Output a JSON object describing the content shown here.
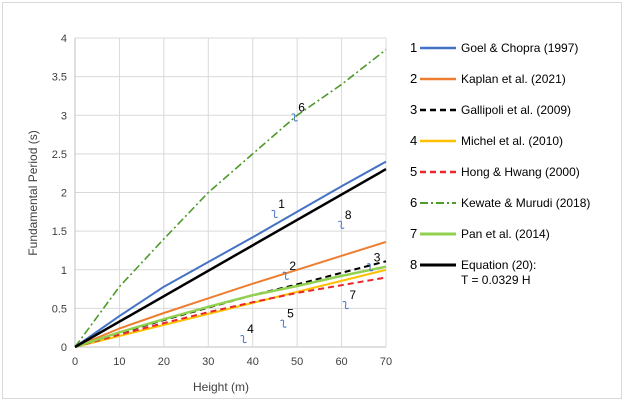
{
  "chart_data": {
    "type": "line",
    "title": "",
    "xlabel": "Height (m)",
    "ylabel": "Fundamental Period (s)",
    "xlim": [
      0,
      70
    ],
    "ylim": [
      0,
      4
    ],
    "xticks": [
      "0",
      "10",
      "20",
      "30",
      "40",
      "50",
      "60",
      "70"
    ],
    "yticks": [
      "0",
      "0.5",
      "1",
      "1.5",
      "2",
      "2.5",
      "3",
      "3.5",
      "4"
    ],
    "grid": true,
    "legend_position": "right",
    "series": [
      {
        "id": "1",
        "name": "Goel & Chopra (1997)",
        "color": "#4472c4",
        "dash": "solid",
        "width": 2,
        "x": [
          0,
          10,
          20,
          30,
          40,
          50,
          60,
          70
        ],
        "y": [
          0,
          0.4,
          0.78,
          1.1,
          1.42,
          1.75,
          2.08,
          2.4
        ]
      },
      {
        "id": "2",
        "name": "Kaplan et al. (2021)",
        "color": "#ed7d31",
        "dash": "solid",
        "width": 2,
        "x": [
          0,
          10,
          20,
          30,
          40,
          50,
          60,
          70
        ],
        "y": [
          0,
          0.24,
          0.44,
          0.63,
          0.82,
          1.0,
          1.18,
          1.36
        ]
      },
      {
        "id": "3",
        "name": "Gallipoli et al. (2009)",
        "color": "#000000",
        "dash": "dashed",
        "width": 2,
        "x": [
          0,
          10,
          20,
          30,
          40,
          50,
          60,
          70
        ],
        "y": [
          0,
          0.18,
          0.35,
          0.51,
          0.67,
          0.81,
          0.96,
          1.11
        ]
      },
      {
        "id": "4",
        "name": "Michel et al. (2010)",
        "color": "#ffc000",
        "dash": "solid",
        "width": 2,
        "x": [
          0,
          70
        ],
        "y": [
          0,
          1.0
        ]
      },
      {
        "id": "5",
        "name": "Hong & Hwang (2000)",
        "color": "#e8262b",
        "dash": "dashed",
        "width": 2,
        "x": [
          0,
          10,
          20,
          30,
          40,
          50,
          60,
          70
        ],
        "y": [
          0,
          0.16,
          0.31,
          0.45,
          0.58,
          0.7,
          0.8,
          0.9
        ]
      },
      {
        "id": "6",
        "name": "Kewate & Murudi (2018)",
        "color": "#4e9a2b",
        "dash": "dashdot",
        "width": 1.6,
        "x": [
          0,
          10,
          20,
          30,
          40,
          50,
          60,
          70
        ],
        "y": [
          0,
          0.78,
          1.4,
          2.0,
          2.5,
          3.0,
          3.4,
          3.85
        ]
      },
      {
        "id": "7",
        "name": "Pan et al. (2014)",
        "color": "#92d050",
        "dash": "solid",
        "width": 2.5,
        "x": [
          0,
          10,
          20,
          30,
          40,
          50,
          60,
          70
        ],
        "y": [
          0,
          0.19,
          0.36,
          0.52,
          0.67,
          0.79,
          0.92,
          1.04
        ]
      },
      {
        "id": "8",
        "name": "Equation (20):",
        "name_line2": "T = 0.0329 H",
        "color": "#000000",
        "dash": "solid",
        "width": 2.5,
        "x": [
          0,
          70
        ],
        "y": [
          0,
          2.303
        ]
      }
    ],
    "annotations": [
      {
        "text": "1",
        "x": 46.5,
        "y": 1.8
      },
      {
        "text": "2",
        "x": 49,
        "y": 1.0
      },
      {
        "text": "3",
        "x": 68,
        "y": 1.11
      },
      {
        "text": "4",
        "x": 39.5,
        "y": 0.18
      },
      {
        "text": "5",
        "x": 48.5,
        "y": 0.38
      },
      {
        "text": "6",
        "x": 51,
        "y": 3.05
      },
      {
        "text": "7",
        "x": 62.5,
        "y": 0.62
      },
      {
        "text": "8",
        "x": 61.5,
        "y": 1.66
      }
    ]
  }
}
